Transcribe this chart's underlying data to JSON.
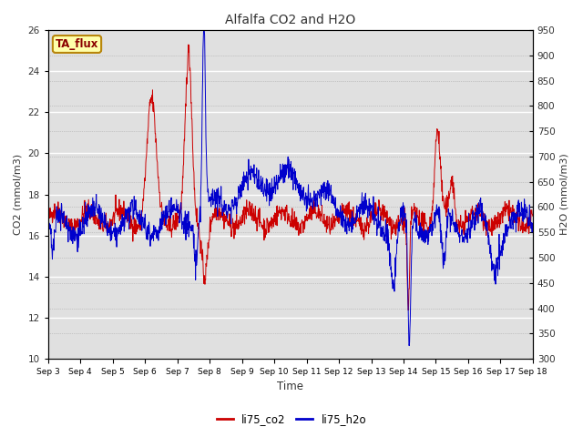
{
  "title": "Alfalfa CO2 and H2O",
  "xlabel": "Time",
  "ylabel_left": "CO2 (mmol/m3)",
  "ylabel_right": "H2O (mmol/m3)",
  "annotation": "TA_flux",
  "ylim_left": [
    10,
    26
  ],
  "ylim_right": [
    300,
    950
  ],
  "yticks_left": [
    10,
    12,
    14,
    16,
    18,
    20,
    22,
    24,
    26
  ],
  "yticks_right": [
    300,
    350,
    400,
    450,
    500,
    550,
    600,
    650,
    700,
    750,
    800,
    850,
    900,
    950
  ],
  "xtick_labels": [
    "Sep 3",
    "Sep 4",
    "Sep 5",
    "Sep 6",
    "Sep 7",
    "Sep 8",
    "Sep 9",
    "Sep 10",
    "Sep 11",
    "Sep 12",
    "Sep 13",
    "Sep 14",
    "Sep 15",
    "Sep 16",
    "Sep 17",
    "Sep 18"
  ],
  "color_co2": "#CC0000",
  "color_h2o": "#0000CC",
  "legend_co2": "li75_co2",
  "legend_h2o": "li75_h2o",
  "bg_color": "#E0E0E0",
  "title_color": "#333333",
  "label_color": "#333333",
  "figsize": [
    6.4,
    4.8
  ],
  "dpi": 100
}
